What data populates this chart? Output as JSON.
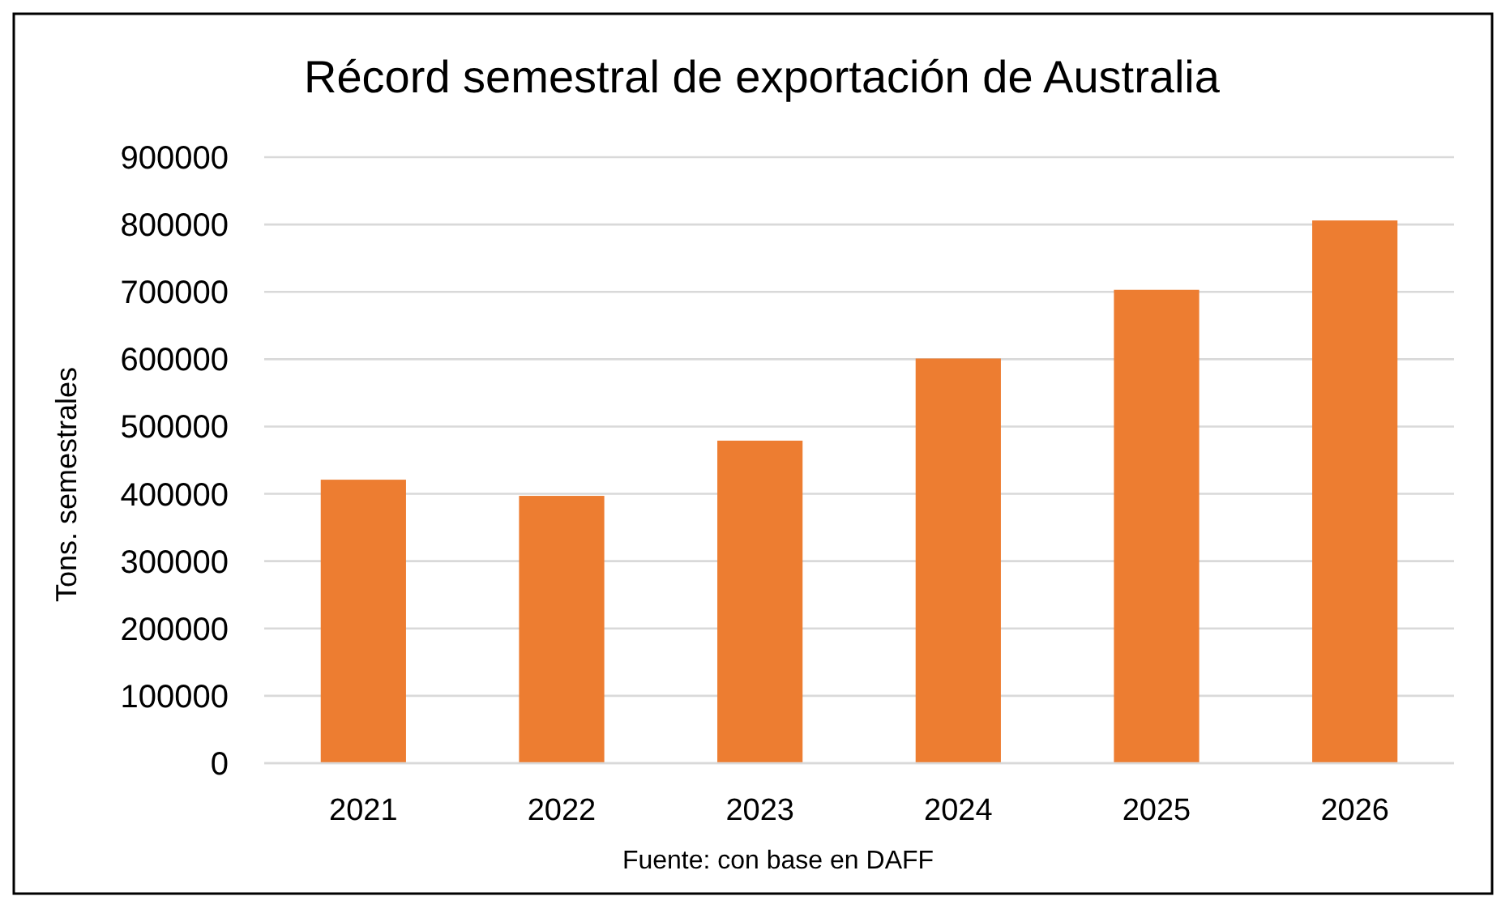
{
  "chart_data": {
    "type": "bar",
    "title": "Récord semestral de exportación de Australia",
    "ylabel": "Tons. semestrales",
    "annotations": [
      "Fuente: con base en DAFF"
    ],
    "categories": [
      "2021",
      "2022",
      "2023",
      "2024",
      "2025",
      "2026"
    ],
    "values": [
      421000,
      397000,
      479000,
      601000,
      703000,
      806000
    ],
    "color": "#ed7d31",
    "ylim": [
      0,
      900000
    ],
    "yticks": [
      0,
      100000,
      200000,
      300000,
      400000,
      500000,
      600000,
      700000,
      800000,
      900000
    ],
    "grid": "y"
  }
}
